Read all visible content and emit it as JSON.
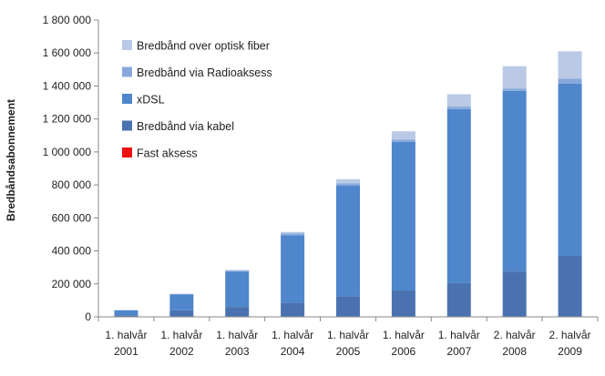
{
  "chart_data": {
    "type": "bar",
    "stacked": true,
    "title": "",
    "xlabel": "",
    "ylabel": "Bredbåndsabonnement",
    "ylim": [
      0,
      1800000
    ],
    "yticks": [
      0,
      200000,
      400000,
      600000,
      800000,
      1000000,
      1200000,
      1400000,
      1600000,
      1800000
    ],
    "ytick_labels": [
      "0",
      "200 000",
      "400 000",
      "600 000",
      "800 000",
      "1 000 000",
      "1 200 000",
      "1 400 000",
      "1 600 000",
      "1 800 000"
    ],
    "grid": false,
    "legend_position": "top-left",
    "categories": [
      [
        "1. halvår",
        "2001"
      ],
      [
        "1. halvår",
        "2002"
      ],
      [
        "1. halvår",
        "2003"
      ],
      [
        "1. halvår",
        "2004"
      ],
      [
        "1. halvår",
        "2005"
      ],
      [
        "1. halvår",
        "2006"
      ],
      [
        "1. halvår",
        "2007"
      ],
      [
        "2. halvår",
        "2008"
      ],
      [
        "2. halvår",
        "2009"
      ]
    ],
    "series": [
      {
        "name": "Fast aksess",
        "color": "#ee1111",
        "values": [
          0,
          0,
          0,
          0,
          0,
          0,
          0,
          0,
          0
        ]
      },
      {
        "name": "Bredbånd via kabel",
        "color": "#4a72b0",
        "values": [
          10000,
          40000,
          60000,
          85000,
          125000,
          160000,
          205000,
          275000,
          370000
        ]
      },
      {
        "name": "xDSL",
        "color": "#4f86cc",
        "values": [
          30000,
          95000,
          215000,
          410000,
          670000,
          900000,
          1055000,
          1095000,
          1045000
        ]
      },
      {
        "name": "Bredbånd via Radioaksess",
        "color": "#88a8dc",
        "values": [
          0,
          3000,
          5000,
          10000,
          15000,
          15000,
          15000,
          15000,
          30000
        ]
      },
      {
        "name": "Bredbånd over optisk fiber",
        "color": "#b9c9e6",
        "values": [
          0,
          2000,
          5000,
          10000,
          25000,
          50000,
          75000,
          135000,
          165000
        ]
      }
    ]
  }
}
